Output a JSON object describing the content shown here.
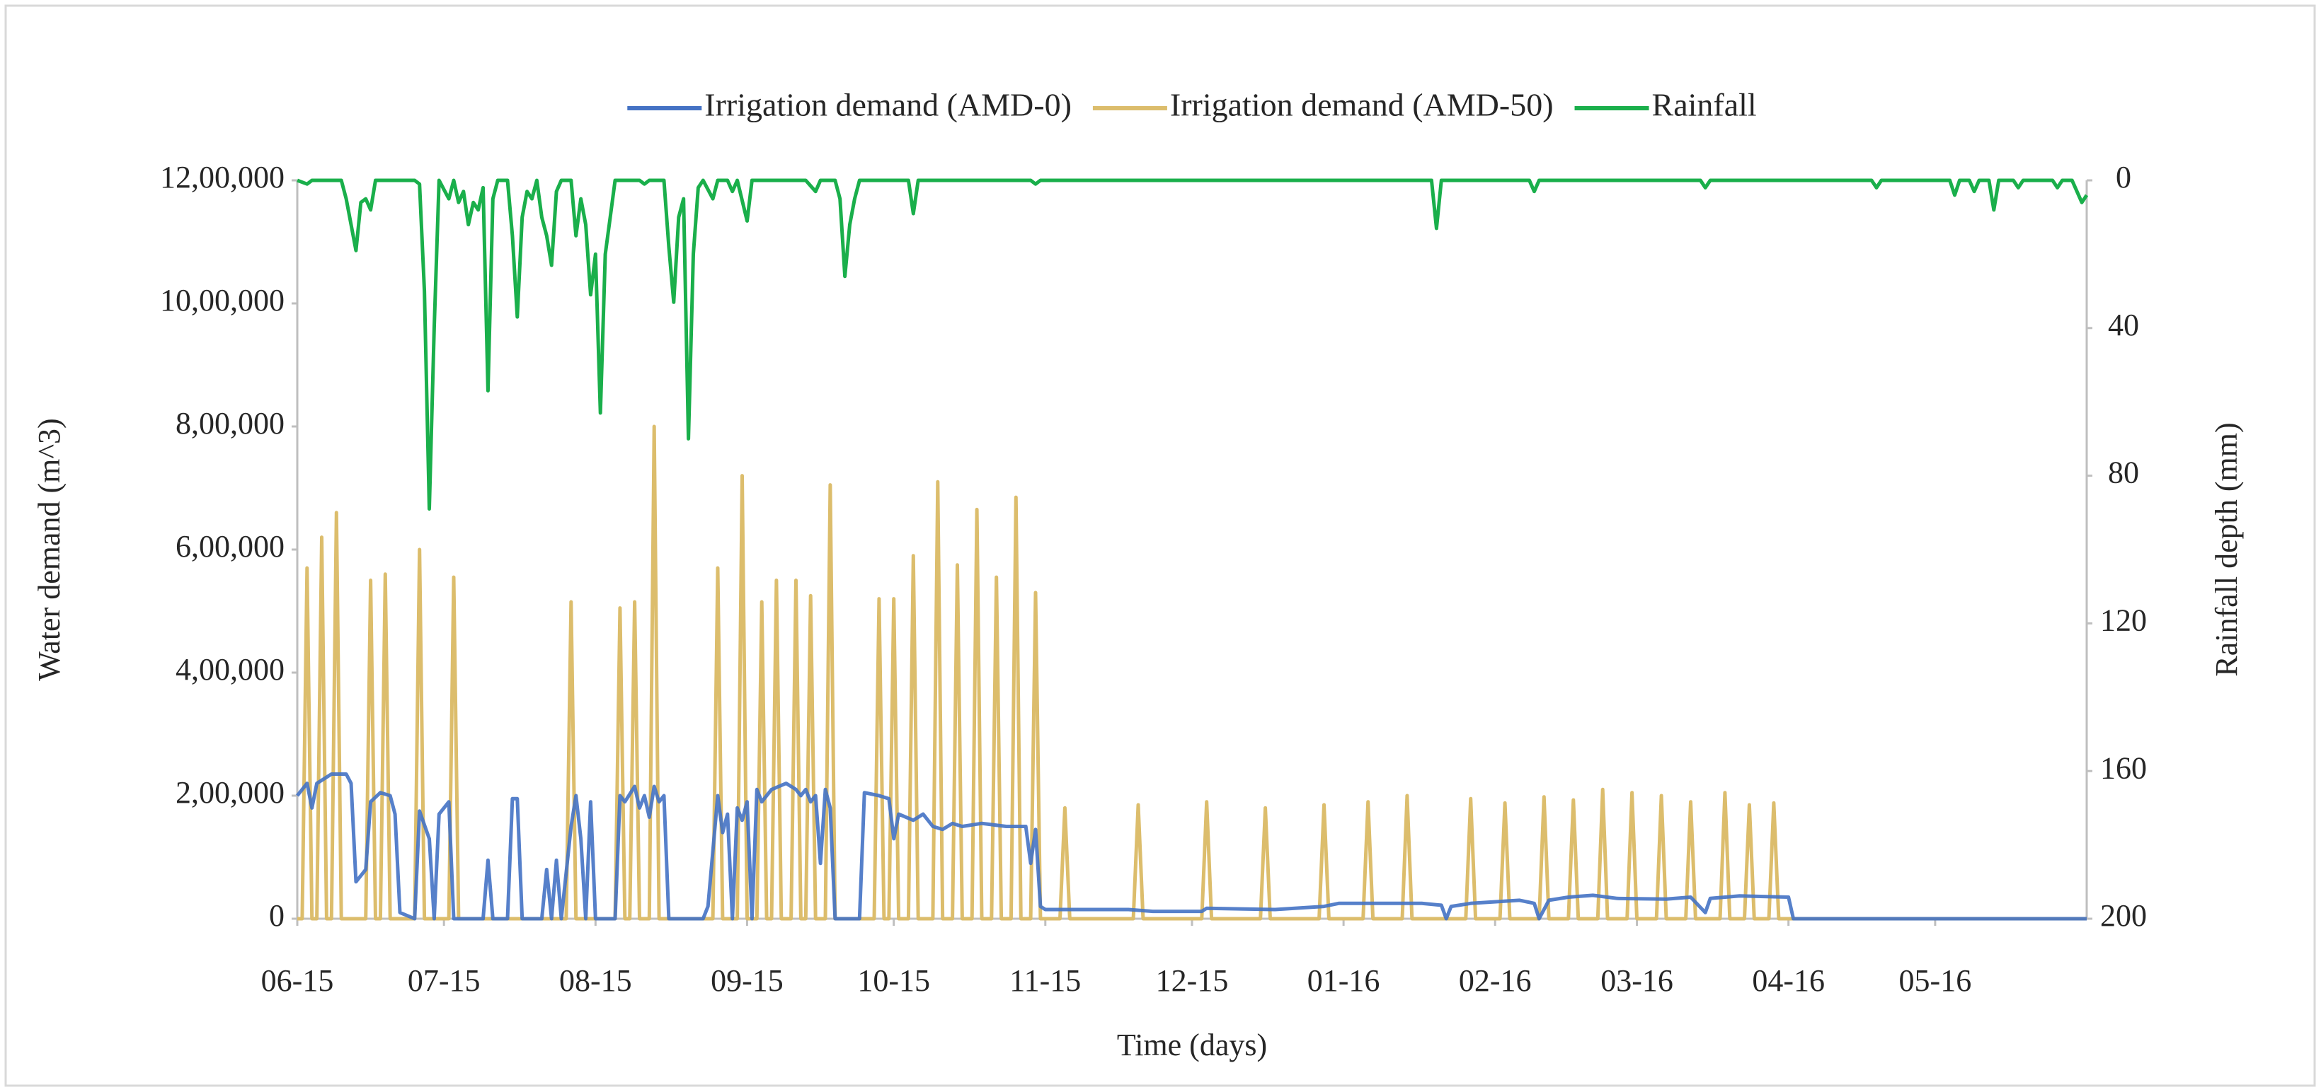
{
  "chart_data": {
    "type": "line",
    "x_label": "Time (days)",
    "y_label": "Water demand (m^3)",
    "y2_label": "Rainfall depth (mm)",
    "xlim": [
      0,
      366
    ],
    "xticks": [
      {
        "value": 0,
        "label": "06-15"
      },
      {
        "value": 30,
        "label": "07-15"
      },
      {
        "value": 61,
        "label": "08-15"
      },
      {
        "value": 92,
        "label": "09-15"
      },
      {
        "value": 122,
        "label": "10-15"
      },
      {
        "value": 153,
        "label": "11-15"
      },
      {
        "value": 183,
        "label": "12-15"
      },
      {
        "value": 214,
        "label": "01-16"
      },
      {
        "value": 245,
        "label": "02-16"
      },
      {
        "value": 274,
        "label": "03-16"
      },
      {
        "value": 305,
        "label": "04-16"
      },
      {
        "value": 335,
        "label": "05-16"
      }
    ],
    "ylim": [
      0,
      1200000
    ],
    "yticks": [
      0,
      {
        "value": 200000,
        "label": "2,00,000"
      },
      {
        "value": 400000,
        "label": "4,00,000"
      },
      {
        "value": 600000,
        "label": "6,00,000"
      },
      {
        "value": 800000,
        "label": "8,00,000"
      },
      {
        "value": 1000000,
        "label": "10,00,000"
      },
      {
        "value": 1200000,
        "label": "12,00,000"
      }
    ],
    "y2lim": [
      200,
      0
    ],
    "y2ticks": [
      0,
      40,
      80,
      120,
      160,
      200
    ],
    "legend": "top",
    "series": [
      {
        "name": "Irrigation demand (AMD-0)",
        "color": "#4472c4",
        "x": [
          0,
          2,
          3,
          4,
          7,
          10,
          11,
          12,
          14,
          15,
          17,
          19,
          20,
          21,
          24,
          25,
          27,
          28,
          29,
          31,
          32,
          38,
          39,
          40,
          43,
          44,
          45,
          46,
          50,
          51,
          52,
          53,
          54,
          56,
          57,
          58,
          59,
          60,
          61,
          65,
          66,
          67,
          69,
          70,
          71,
          72,
          73,
          74,
          75,
          76,
          83,
          84,
          86,
          87,
          88,
          89,
          90,
          91,
          92,
          93,
          94,
          95,
          97,
          100,
          102,
          103,
          104,
          105,
          106,
          107,
          108,
          109,
          110,
          115,
          116,
          119,
          121,
          122,
          123,
          126,
          128,
          130,
          132,
          134,
          136,
          140,
          145,
          149,
          150,
          151,
          152,
          153,
          170,
          175,
          185,
          186,
          200,
          210,
          213,
          230,
          234,
          235,
          236,
          240,
          250,
          253,
          254,
          256,
          260,
          265,
          270,
          280,
          285,
          288,
          289,
          295,
          305,
          306,
          366
        ],
        "values": [
          200000,
          220000,
          180000,
          220000,
          235000,
          235000,
          220000,
          60000,
          80000,
          190000,
          205000,
          200000,
          170000,
          10000,
          0,
          175000,
          130000,
          0,
          170000,
          190000,
          0,
          0,
          95000,
          0,
          0,
          195000,
          195000,
          0,
          0,
          80000,
          0,
          95000,
          0,
          150000,
          200000,
          130000,
          0,
          190000,
          0,
          0,
          200000,
          190000,
          215000,
          180000,
          200000,
          165000,
          215000,
          190000,
          200000,
          0,
          0,
          20000,
          200000,
          140000,
          170000,
          0,
          180000,
          160000,
          190000,
          0,
          210000,
          190000,
          210000,
          220000,
          210000,
          200000,
          210000,
          190000,
          200000,
          90000,
          210000,
          180000,
          0,
          0,
          205000,
          200000,
          195000,
          130000,
          170000,
          160000,
          170000,
          150000,
          145000,
          155000,
          150000,
          155000,
          150000,
          150000,
          90000,
          145000,
          20000,
          15000,
          15000,
          12000,
          12000,
          17000,
          15000,
          20000,
          25000,
          25000,
          22000,
          0,
          20000,
          25000,
          30000,
          25000,
          0,
          30000,
          35000,
          38000,
          33000,
          32000,
          35000,
          10000,
          33000,
          37000,
          35000,
          0,
          0
        ]
      },
      {
        "name": "Irrigation demand (AMD-50)",
        "color": "#dcbd6c",
        "x": [
          0,
          1,
          2,
          3,
          4,
          5,
          6,
          7,
          8,
          9,
          14,
          15,
          16,
          17,
          18,
          19,
          24,
          25,
          26,
          31,
          32,
          33,
          55,
          56,
          57,
          65,
          66,
          67,
          68,
          69,
          70,
          72,
          73,
          74,
          85,
          86,
          87,
          90,
          91,
          92,
          94,
          95,
          96,
          97,
          98,
          99,
          101,
          102,
          103,
          104,
          105,
          106,
          108,
          109,
          110,
          118,
          119,
          120,
          121,
          122,
          123,
          125,
          126,
          127,
          130,
          131,
          132,
          134,
          135,
          136,
          138,
          139,
          140,
          142,
          143,
          144,
          146,
          147,
          148,
          150,
          151,
          152,
          156,
          157,
          158,
          171,
          172,
          173,
          185,
          186,
          187,
          197,
          198,
          199,
          209,
          210,
          211,
          218,
          219,
          220,
          226,
          227,
          228,
          239,
          240,
          241,
          246,
          247,
          248,
          254,
          255,
          256,
          260,
          261,
          262,
          266,
          267,
          268,
          272,
          273,
          274,
          278,
          279,
          280,
          284,
          285,
          286,
          291,
          292,
          293,
          296,
          297,
          298,
          301,
          302,
          303,
          366
        ],
        "values": [
          0,
          0,
          570000,
          0,
          0,
          620000,
          0,
          0,
          660000,
          0,
          0,
          550000,
          0,
          0,
          560000,
          0,
          0,
          600000,
          0,
          0,
          555000,
          0,
          0,
          515000,
          0,
          0,
          505000,
          0,
          0,
          515000,
          0,
          0,
          800000,
          0,
          0,
          570000,
          0,
          0,
          720000,
          0,
          0,
          515000,
          0,
          0,
          550000,
          0,
          0,
          550000,
          0,
          0,
          525000,
          0,
          0,
          705000,
          0,
          0,
          520000,
          0,
          0,
          520000,
          0,
          0,
          590000,
          0,
          0,
          710000,
          0,
          0,
          575000,
          0,
          0,
          665000,
          0,
          0,
          555000,
          0,
          0,
          685000,
          0,
          0,
          530000,
          0,
          0,
          180000,
          0,
          0,
          185000,
          0,
          0,
          190000,
          0,
          0,
          180000,
          0,
          0,
          185000,
          0,
          0,
          190000,
          0,
          0,
          200000,
          0,
          0,
          195000,
          0,
          0,
          188000,
          0,
          0,
          198000,
          0,
          0,
          193000,
          0,
          0,
          210000,
          0,
          0,
          205000,
          0,
          0,
          200000,
          0,
          0,
          190000,
          0,
          0,
          205000,
          0,
          0,
          185000,
          0,
          0,
          188000,
          0,
          0
        ]
      },
      {
        "name": "Rainfall",
        "color": "#1aaf4b",
        "axis": "y2",
        "x": [
          0,
          2,
          3,
          9,
          10,
          12,
          13,
          14,
          15,
          16,
          24,
          25,
          26,
          27,
          28,
          29,
          31,
          32,
          33,
          34,
          35,
          36,
          37,
          38,
          39,
          40,
          41,
          43,
          44,
          45,
          46,
          47,
          48,
          49,
          50,
          51,
          52,
          53,
          54,
          56,
          57,
          58,
          59,
          60,
          61,
          62,
          63,
          64,
          65,
          70,
          71,
          72,
          75,
          76,
          77,
          78,
          79,
          80,
          81,
          82,
          83,
          85,
          86,
          88,
          89,
          90,
          92,
          93,
          104,
          106,
          107,
          110,
          111,
          112,
          113,
          114,
          115,
          125,
          126,
          127,
          150,
          151,
          152,
          232,
          233,
          234,
          252,
          253,
          254,
          287,
          288,
          289,
          322,
          323,
          324,
          338,
          339,
          340,
          342,
          343,
          344,
          346,
          347,
          348,
          351,
          352,
          353,
          359,
          360,
          361,
          363,
          365,
          366
        ],
        "values": [
          0,
          1,
          0,
          0,
          5,
          19,
          6,
          5,
          8,
          0,
          0,
          1,
          30,
          89,
          40,
          0,
          5,
          0,
          6,
          3,
          12,
          6,
          8,
          2,
          57,
          5,
          0,
          0,
          15,
          37,
          10,
          3,
          5,
          0,
          10,
          15,
          23,
          3,
          0,
          0,
          15,
          5,
          12,
          31,
          20,
          63,
          20,
          10,
          0,
          0,
          1,
          0,
          0,
          18,
          33,
          10,
          5,
          70,
          20,
          2,
          0,
          5,
          0,
          0,
          3,
          0,
          11,
          0,
          0,
          3,
          0,
          0,
          5,
          26,
          12,
          5,
          0,
          0,
          9,
          0,
          0,
          1,
          0,
          0,
          13,
          0,
          0,
          3,
          0,
          0,
          2,
          0,
          0,
          2,
          0,
          0,
          4,
          0,
          0,
          3,
          0,
          0,
          8,
          0,
          0,
          2,
          0,
          0,
          2,
          0,
          0,
          6,
          4
        ]
      }
    ]
  }
}
